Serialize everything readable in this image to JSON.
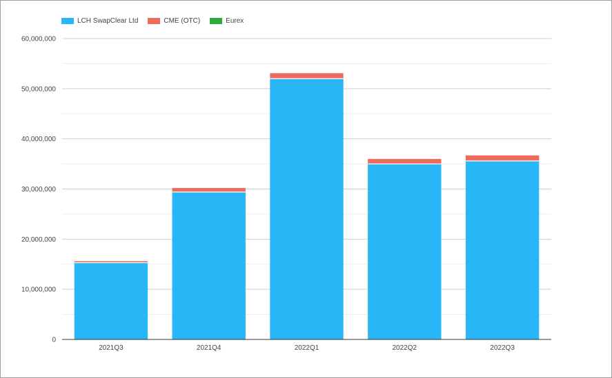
{
  "chart_data": {
    "type": "bar",
    "stacked": true,
    "categories": [
      "2021Q3",
      "2021Q4",
      "2022Q1",
      "2022Q2",
      "2022Q3"
    ],
    "series": [
      {
        "name": "LCH SwapClear Ltd",
        "color": "#29b6f6",
        "values": [
          15300000,
          29400000,
          52000000,
          35000000,
          35600000
        ]
      },
      {
        "name": "CME (OTC)",
        "color": "#ef6c5c",
        "values": [
          300000,
          800000,
          1100000,
          1000000,
          1100000
        ]
      },
      {
        "name": "Eurex",
        "color": "#2eaa3a",
        "values": [
          0,
          0,
          0,
          0,
          0
        ]
      }
    ],
    "yticks": [
      "0",
      "10,000,000",
      "20,000,000",
      "30,000,000",
      "40,000,000",
      "50,000,000",
      "60,000,000"
    ],
    "ylim": [
      0,
      60000000
    ],
    "grid": true,
    "legend": "top-left"
  }
}
